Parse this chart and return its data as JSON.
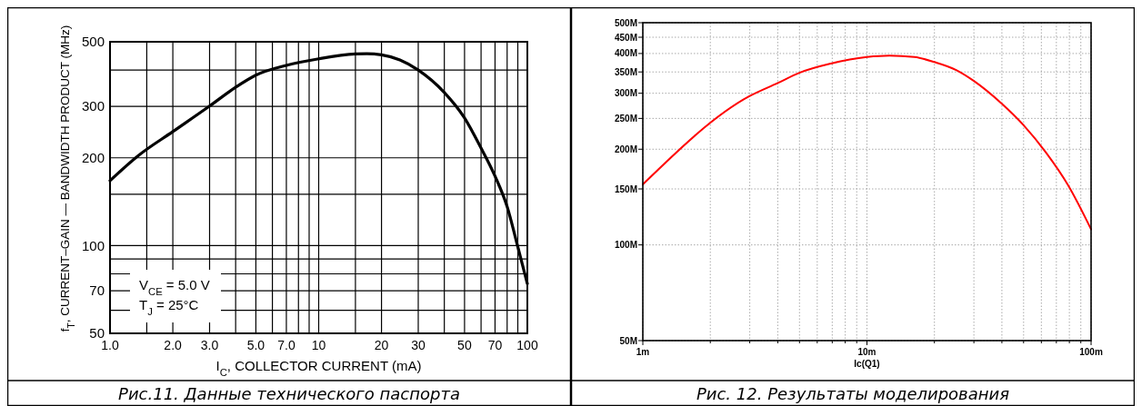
{
  "chart_data": [
    {
      "type": "line",
      "xlabel": "I$_{C}$, COLLECTOR CURRENT (mA)",
      "ylabel": "f$_{T}$, CURRENT–GAIN — BANDWIDTH PRODUCT (MHz)",
      "log": "xy",
      "grid": true,
      "line_style": "solid",
      "annotations": [
        "V$_{CE}$ = 5.0 V",
        "T$_{J}$ = 25°C",
        "Рис.11. Данные технического паспорта"
      ],
      "xlim": [
        1,
        100
      ],
      "ylim": [
        50,
        500
      ],
      "xticks": [
        {
          "value": 1,
          "label": "1.0"
        },
        {
          "value": 1.5,
          "label": null
        },
        {
          "value": 2,
          "label": "2.0"
        },
        {
          "value": 3,
          "label": "3.0"
        },
        {
          "value": 4,
          "label": null
        },
        {
          "value": 5,
          "label": "5.0"
        },
        {
          "value": 6,
          "label": null
        },
        {
          "value": 7,
          "label": "7.0"
        },
        {
          "value": 8,
          "label": null
        },
        {
          "value": 9,
          "label": null
        },
        10,
        {
          "value": 15,
          "label": null
        },
        20,
        30,
        {
          "value": 40,
          "label": null
        },
        50,
        {
          "value": 60,
          "label": null
        },
        70,
        {
          "value": 80,
          "label": null
        },
        {
          "value": 90,
          "label": null
        },
        100
      ],
      "yticks": [
        50,
        {
          "value": 60,
          "label": null
        },
        70,
        {
          "value": 80,
          "label": null
        },
        {
          "value": 90,
          "label": null
        },
        100,
        {
          "value": 150,
          "label": null
        },
        200,
        300,
        {
          "value": 400,
          "label": null
        },
        500
      ],
      "x": [
        1,
        1.36,
        2,
        3,
        4,
        5,
        7,
        10,
        15,
        17,
        20,
        24.5,
        30,
        40,
        50,
        60,
        70,
        80,
        90,
        100
      ],
      "series": [
        {
          "color": "#000000",
          "values": [
            167,
            203,
            246,
            301,
            349,
            384,
            415,
            437,
            454,
            455,
            451,
            433,
            400,
            335,
            274,
            216,
            173,
            136,
            99,
            74
          ]
        }
      ]
    },
    {
      "type": "line",
      "xlabel": "Ic(Q1)",
      "log": "xy",
      "grid": true,
      "line_style": "solid",
      "annotations": [
        "Рис. 12. Результаты моделирования"
      ],
      "xlim": [
        1,
        100
      ],
      "ylim": [
        50,
        500
      ],
      "xticks": [
        {
          "value": 1,
          "label": "1m"
        },
        {
          "value": 2,
          "label": null
        },
        {
          "value": 3,
          "label": null
        },
        {
          "value": 4,
          "label": null
        },
        {
          "value": 5,
          "label": null
        },
        {
          "value": 6,
          "label": null
        },
        {
          "value": 7,
          "label": null
        },
        {
          "value": 8,
          "label": null
        },
        {
          "value": 9,
          "label": null
        },
        {
          "value": 10,
          "label": "10m"
        },
        {
          "value": 20,
          "label": null
        },
        {
          "value": 30,
          "label": null
        },
        {
          "value": 40,
          "label": null
        },
        {
          "value": 50,
          "label": null
        },
        {
          "value": 60,
          "label": null
        },
        {
          "value": 70,
          "label": null
        },
        {
          "value": 80,
          "label": null
        },
        {
          "value": 90,
          "label": null
        },
        {
          "value": 100,
          "label": "100m"
        }
      ],
      "yticks": [
        {
          "value": 50,
          "label": "50M"
        },
        {
          "value": 100,
          "label": "100M"
        },
        {
          "value": 150,
          "label": "150M"
        },
        {
          "value": 200,
          "label": "200M"
        },
        {
          "value": 250,
          "label": "250M"
        },
        {
          "value": 300,
          "label": "300M"
        },
        {
          "value": 350,
          "label": "350M"
        },
        {
          "value": 400,
          "label": "400M"
        },
        {
          "value": 450,
          "label": "450M"
        },
        {
          "value": 500,
          "label": "500M"
        }
      ],
      "x": [
        1,
        3,
        4,
        5,
        6.9,
        10,
        12.6,
        16.3,
        20,
        25,
        30,
        40,
        50,
        63,
        79,
        100
      ],
      "series": [
        {
          "color": "#ff0000",
          "values": [
            155,
            294,
            323,
            348,
            372,
            390,
            394,
            390,
            376,
            355,
            328,
            278,
            238,
            195,
            154,
            112
          ]
        }
      ]
    }
  ]
}
